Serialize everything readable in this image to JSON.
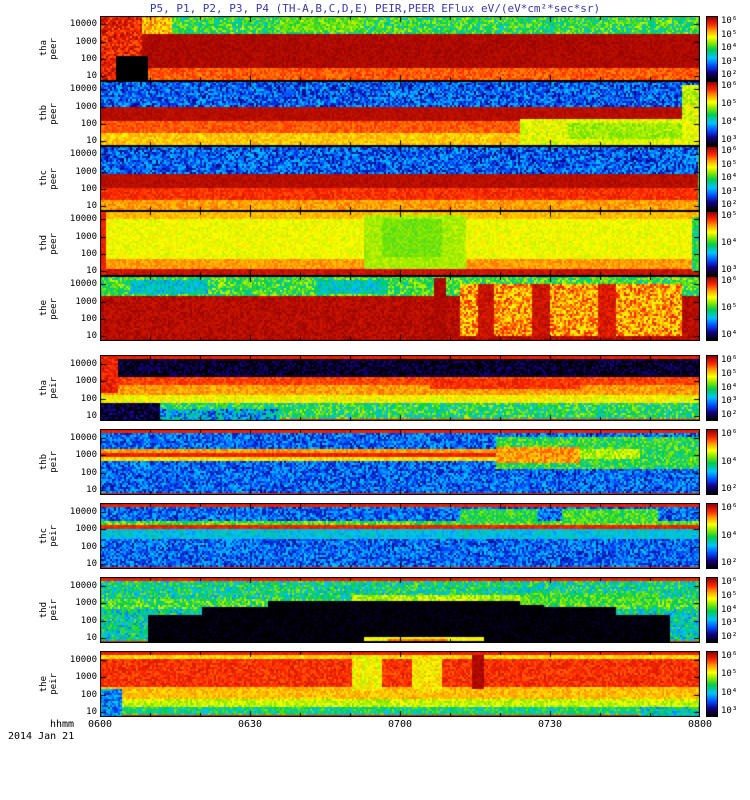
{
  "title": "P5, P1, P2, P3, P4 (TH-A,B,C,D,E) PEIR,PEER EFlux eV/(eV*cm²*sec*sr)",
  "x_axis": {
    "label": "hhmm",
    "date": "2014 Jan 21",
    "ticks": [
      "0600",
      "0630",
      "0700",
      "0730",
      "0800"
    ]
  },
  "y_axis": {
    "ticks": [
      "10000",
      "1000",
      "100",
      "10"
    ]
  },
  "chart_data": {
    "type": "heatmap",
    "subtype": "energy-time spectrogram, 10 stacked panels",
    "title": "P5, P1, P2, P3, P4 (TH-A,B,C,D,E) PEIR,PEER EFlux eV/(eV*cm²*sec*sr)",
    "units": "eV/(eV*cm2*sec*sr)",
    "date": "2014 Jan 21",
    "x_scale": "time hhmm",
    "x_range": [
      "0600",
      "0800"
    ],
    "x_ticks": [
      "0600",
      "0630",
      "0700",
      "0730",
      "0800"
    ],
    "y_scale": "log energy (eV)",
    "y_ticks": [
      10,
      100,
      1000,
      10000
    ],
    "colormap": "rainbow (black-blue-cyan-green-yellow-orange-red)",
    "panels": [
      {
        "label": [
          "tha",
          "peer"
        ],
        "colorbar_ticks": [
          "10⁶",
          "10⁵",
          "10⁴",
          "10³",
          "10²"
        ],
        "edge_lines": false,
        "bands": [
          {
            "y0": 0,
            "y1": 0.26,
            "v": 0.5,
            "n": 0.14
          },
          {
            "y0": 0.26,
            "y1": 0.8,
            "v": 0.97,
            "n": 0.02
          },
          {
            "y0": 0.8,
            "y1": 1,
            "v": 0.84,
            "n": 0.05
          }
        ],
        "features": [
          {
            "x0": 0,
            "x1": 0.07,
            "y0": 0,
            "y1": 1,
            "v": 0.9,
            "n": 0.08
          },
          {
            "x0": 0.07,
            "x1": 0.12,
            "y0": 0,
            "y1": 0.26,
            "v": 0.75,
            "n": 0.1
          },
          {
            "x0": 0.025,
            "x1": 0.08,
            "y0": 0.6,
            "y1": 1,
            "v": -1,
            "n": 0
          },
          {
            "x0": 0.3,
            "x1": 0.44,
            "y0": 0,
            "y1": 0.24,
            "v": 0.56,
            "n": 0.08
          }
        ]
      },
      {
        "label": [
          "thb",
          "peer"
        ],
        "colorbar_ticks": [
          "10⁶",
          "10⁵",
          "10⁴",
          "10³"
        ],
        "edge_lines": false,
        "bands": [
          {
            "y0": 0,
            "y1": 0.38,
            "v": 0.24,
            "n": 0.13
          },
          {
            "y0": 0.38,
            "y1": 0.6,
            "v": 0.96,
            "n": 0.02
          },
          {
            "y0": 0.6,
            "y1": 0.78,
            "v": 0.84,
            "n": 0.04
          },
          {
            "y0": 0.78,
            "y1": 1,
            "v": 0.74,
            "n": 0.05
          }
        ],
        "features": [
          {
            "x0": 0.7,
            "x1": 1,
            "y0": 0.58,
            "y1": 1,
            "v": 0.66,
            "n": 0.06
          },
          {
            "x0": 0.78,
            "x1": 0.97,
            "y0": 0.62,
            "y1": 0.88,
            "v": 0.6,
            "n": 0.05
          },
          {
            "x0": 0.97,
            "x1": 1,
            "y0": 0.04,
            "y1": 0.6,
            "v": 0.64,
            "n": 0.08
          }
        ]
      },
      {
        "label": [
          "thc",
          "peer"
        ],
        "colorbar_ticks": [
          "10⁶",
          "10⁵",
          "10⁴",
          "10³",
          "10²"
        ],
        "edge_lines": false,
        "bands": [
          {
            "y0": 0,
            "y1": 0.42,
            "v": 0.24,
            "n": 0.13
          },
          {
            "y0": 0.42,
            "y1": 0.62,
            "v": 0.96,
            "n": 0.02
          },
          {
            "y0": 0.62,
            "y1": 0.82,
            "v": 0.88,
            "n": 0.04
          },
          {
            "y0": 0.82,
            "y1": 1,
            "v": 0.78,
            "n": 0.05
          }
        ],
        "features": [
          {
            "x0": 0.995,
            "x1": 1,
            "y0": 0,
            "y1": 1,
            "v": 0.5,
            "n": 0.1
          }
        ]
      },
      {
        "label": [
          "thd",
          "peer"
        ],
        "colorbar_ticks": [
          "10⁵",
          "10⁴",
          "10³"
        ],
        "edge_lines": false,
        "bands": [
          {
            "y0": 0,
            "y1": 0.12,
            "v": 0.75,
            "n": 0.04
          },
          {
            "y0": 0.12,
            "y1": 0.72,
            "v": 0.67,
            "n": 0.04
          },
          {
            "y0": 0.72,
            "y1": 0.88,
            "v": 0.78,
            "n": 0.04
          },
          {
            "y0": 0.88,
            "y1": 1,
            "v": 0.94,
            "n": 0.03
          }
        ],
        "features": [
          {
            "x0": 0.44,
            "x1": 0.61,
            "y0": 0.04,
            "y1": 0.88,
            "v": 0.61,
            "n": 0.03
          },
          {
            "x0": 0.47,
            "x1": 0.57,
            "y0": 0.12,
            "y1": 0.7,
            "v": 0.57,
            "n": 0.03
          },
          {
            "x0": 0,
            "x1": 0.008,
            "y0": 0,
            "y1": 1,
            "v": 0.9,
            "n": 0.02
          },
          {
            "x0": 0.985,
            "x1": 1,
            "y0": 0.08,
            "y1": 0.92,
            "v": 0.47,
            "n": 0.1
          }
        ]
      },
      {
        "label": [
          "the",
          "peer"
        ],
        "colorbar_ticks": [
          "10⁶",
          "10⁵",
          "10⁴"
        ],
        "edge_lines": false,
        "bands": [
          {
            "y0": 0,
            "y1": 0.28,
            "v": 0.52,
            "n": 0.13
          },
          {
            "y0": 0.28,
            "y1": 1,
            "v": 0.96,
            "n": 0.03
          }
        ],
        "features": [
          {
            "x0": 0.05,
            "x1": 0.18,
            "y0": 0.04,
            "y1": 0.26,
            "v": 0.38,
            "n": 0.1
          },
          {
            "x0": 0.36,
            "x1": 0.48,
            "y0": 0.04,
            "y1": 0.26,
            "v": 0.4,
            "n": 0.1
          },
          {
            "x0": 0.6,
            "x1": 0.97,
            "y0": 0.12,
            "y1": 0.9,
            "v": 0.78,
            "n": 0.13
          },
          {
            "x0": 0.555,
            "x1": 0.575,
            "y0": 0.03,
            "y1": 0.95,
            "v": 0.97,
            "n": 0.02
          },
          {
            "x0": 0.63,
            "x1": 0.655,
            "y0": 0.1,
            "y1": 0.95,
            "v": 0.94,
            "n": 0.03
          },
          {
            "x0": 0.72,
            "x1": 0.75,
            "y0": 0.1,
            "y1": 0.95,
            "v": 0.94,
            "n": 0.03
          },
          {
            "x0": 0.83,
            "x1": 0.86,
            "y0": 0.12,
            "y1": 0.95,
            "v": 0.92,
            "n": 0.04
          }
        ]
      },
      {
        "label": [
          "tha",
          "peir"
        ],
        "colorbar_ticks": [
          "10⁶",
          "10⁵",
          "10⁴",
          "10³",
          "10²"
        ],
        "edge_lines": true,
        "bands": [
          {
            "y0": 0,
            "y1": 0.33,
            "v": 0.03,
            "n": 0.1
          },
          {
            "y0": 0.33,
            "y1": 0.44,
            "v": 0.86,
            "n": 0.04
          },
          {
            "y0": 0.44,
            "y1": 0.58,
            "v": 0.78,
            "n": 0.05
          },
          {
            "y0": 0.58,
            "y1": 0.72,
            "v": 0.68,
            "n": 0.06
          },
          {
            "y0": 0.72,
            "y1": 1,
            "v": 0.48,
            "n": 0.15
          }
        ],
        "features": [
          {
            "x0": 0,
            "x1": 0.03,
            "y0": 0,
            "y1": 0.55,
            "v": 0.9,
            "n": 0.05
          },
          {
            "x0": 0,
            "x1": 0.1,
            "y0": 0.72,
            "y1": 0.97,
            "v": 0.05,
            "n": 0.1
          },
          {
            "x0": 0.1,
            "x1": 0.3,
            "y0": 0.8,
            "y1": 0.97,
            "v": 0.32,
            "n": 0.18
          },
          {
            "x0": 0.55,
            "x1": 0.8,
            "y0": 0.36,
            "y1": 0.5,
            "v": 0.88,
            "n": 0.04
          }
        ]
      },
      {
        "label": [
          "thb",
          "peir"
        ],
        "colorbar_ticks": [
          "10⁶",
          "10⁴",
          "10²"
        ],
        "edge_lines": true,
        "bands": [
          {
            "y0": 0,
            "y1": 1,
            "v": 0.25,
            "n": 0.12
          },
          {
            "y0": 0.28,
            "y1": 0.34,
            "v": 0.78,
            "n": 0.05
          },
          {
            "y0": 0.34,
            "y1": 0.41,
            "v": 0.9,
            "n": 0.03
          },
          {
            "y0": 0.41,
            "y1": 0.47,
            "v": 0.72,
            "n": 0.05
          }
        ],
        "features": [
          {
            "x0": 0.66,
            "x1": 1,
            "y0": 0.12,
            "y1": 0.6,
            "v": 0.5,
            "n": 0.12
          },
          {
            "x0": 0.66,
            "x1": 0.8,
            "y0": 0.26,
            "y1": 0.5,
            "v": 0.78,
            "n": 0.07
          },
          {
            "x0": 0.8,
            "x1": 0.9,
            "y0": 0.3,
            "y1": 0.44,
            "v": 0.62,
            "n": 0.08
          }
        ]
      },
      {
        "label": [
          "thc",
          "peir"
        ],
        "colorbar_ticks": [
          "10⁶",
          "10⁴",
          "10²"
        ],
        "edge_lines": true,
        "bands": [
          {
            "y0": 0,
            "y1": 1,
            "v": 0.25,
            "n": 0.12
          },
          {
            "y0": 0.26,
            "y1": 0.31,
            "v": 0.55,
            "n": 0.1
          },
          {
            "y0": 0.31,
            "y1": 0.39,
            "v": 0.9,
            "n": 0.03
          },
          {
            "y0": 0.39,
            "y1": 0.53,
            "v": 0.37,
            "n": 0.07
          }
        ],
        "features": [
          {
            "x0": 0.6,
            "x1": 0.73,
            "y0": 0.08,
            "y1": 0.28,
            "v": 0.5,
            "n": 0.1
          },
          {
            "x0": 0.77,
            "x1": 0.93,
            "y0": 0.08,
            "y1": 0.28,
            "v": 0.52,
            "n": 0.1
          }
        ]
      },
      {
        "label": [
          "thd",
          "peir"
        ],
        "colorbar_ticks": [
          "10⁶",
          "10⁵",
          "10⁴",
          "10³",
          "10²"
        ],
        "edge_lines": true,
        "bands": [
          {
            "y0": 0,
            "y1": 0.32,
            "v": 0.45,
            "n": 0.15
          },
          {
            "y0": 0.32,
            "y1": 0.46,
            "v": 0.52,
            "n": 0.13
          },
          {
            "y0": 0.46,
            "y1": 1,
            "v": 0.42,
            "n": 0.15
          }
        ],
        "features": [
          {
            "x0": 0.08,
            "x1": 0.95,
            "y0": 0.55,
            "y1": 0.97,
            "v": 0.005,
            "n": 0.03
          },
          {
            "x0": 0.17,
            "x1": 0.86,
            "y0": 0.44,
            "y1": 0.56,
            "v": 0.005,
            "n": 0.03
          },
          {
            "x0": 0.28,
            "x1": 0.74,
            "y0": 0.35,
            "y1": 0.45,
            "v": 0.005,
            "n": 0.03
          },
          {
            "x0": 0.42,
            "x1": 0.7,
            "y0": 0.26,
            "y1": 0.36,
            "v": 0.62,
            "n": 0.08
          },
          {
            "x0": 0.7,
            "x1": 0.93,
            "y0": 0.24,
            "y1": 0.4,
            "v": 0.52,
            "n": 0.1
          },
          {
            "x0": 0.44,
            "x1": 0.64,
            "y0": 0.9,
            "y1": 0.96,
            "v": 0.68,
            "n": 0.04
          },
          {
            "x0": 0.48,
            "x1": 0.58,
            "y0": 0.92,
            "y1": 0.96,
            "v": 0.82,
            "n": 0.03
          },
          {
            "x0": 0.44,
            "x1": 0.65,
            "y0": 0.97,
            "y1": 1,
            "v": 0.68,
            "n": 0.03
          }
        ]
      },
      {
        "label": [
          "the",
          "peir"
        ],
        "colorbar_ticks": [
          "10⁶",
          "10⁵",
          "10⁴",
          "10³"
        ],
        "edge_lines": true,
        "bands": [
          {
            "y0": 0,
            "y1": 0.1,
            "v": 0.72,
            "n": 0.05
          },
          {
            "y0": 0.1,
            "y1": 0.52,
            "v": 0.88,
            "n": 0.05
          },
          {
            "y0": 0.52,
            "y1": 0.7,
            "v": 0.75,
            "n": 0.05
          },
          {
            "y0": 0.7,
            "y1": 0.84,
            "v": 0.63,
            "n": 0.06
          },
          {
            "y0": 0.84,
            "y1": 1,
            "v": 0.46,
            "n": 0.12
          }
        ],
        "features": [
          {
            "x0": 0.42,
            "x1": 0.47,
            "y0": 0.06,
            "y1": 0.6,
            "v": 0.68,
            "n": 0.07
          },
          {
            "x0": 0.52,
            "x1": 0.57,
            "y0": 0.06,
            "y1": 0.6,
            "v": 0.7,
            "n": 0.07
          },
          {
            "x0": 0,
            "x1": 0.035,
            "y0": 0.55,
            "y1": 0.97,
            "v": 0.3,
            "n": 0.12
          },
          {
            "x0": 0.62,
            "x1": 0.64,
            "y0": 0.05,
            "y1": 0.55,
            "v": 0.97,
            "n": 0.02
          },
          {
            "x0": 0.9,
            "x1": 1,
            "y0": 0.84,
            "y1": 0.97,
            "v": 0.4,
            "n": 0.14
          }
        ]
      }
    ]
  }
}
